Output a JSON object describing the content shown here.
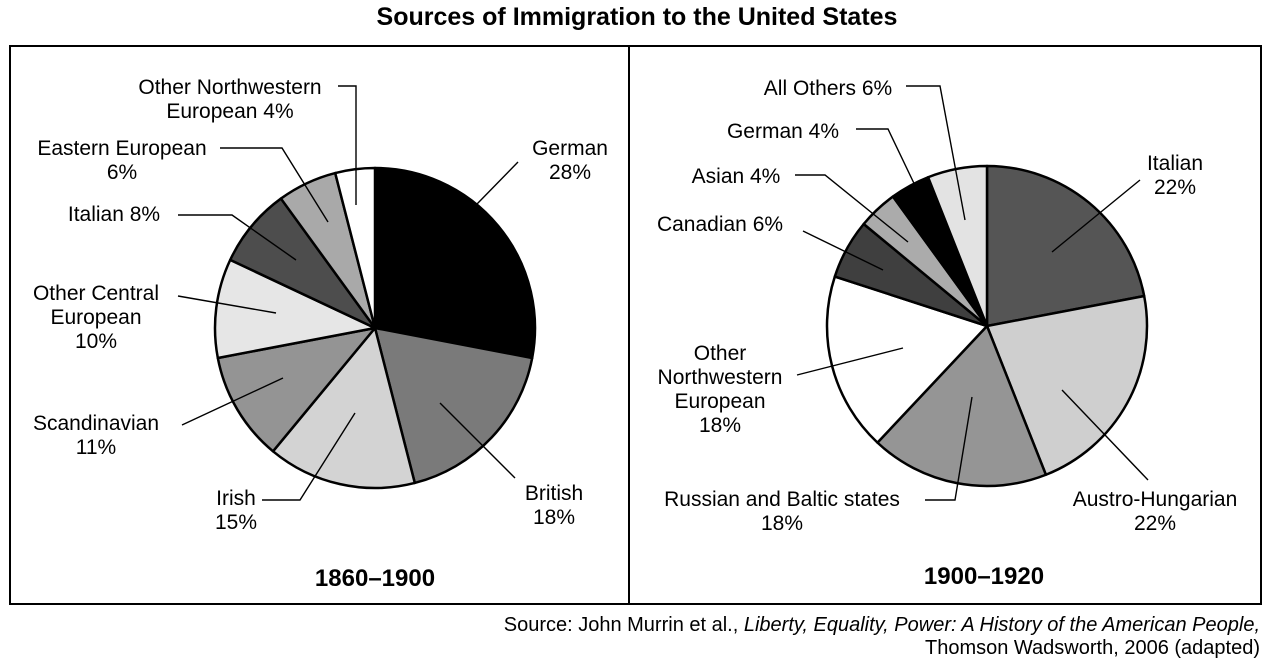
{
  "title": "Sources of Immigration to the United States",
  "source": {
    "prefix": "Source: John Murrin et al., ",
    "book": "Liberty, Equality, Power: A History of the American People,",
    "line2": "Thomson Wadsworth, 2006 (adapted)"
  },
  "chart_data": [
    {
      "type": "pie",
      "title": "1860–1900",
      "slices": [
        {
          "label": "German",
          "value": 28,
          "color": "#000000",
          "text": [
            "German",
            "28%"
          ]
        },
        {
          "label": "British",
          "value": 18,
          "color": "#7a7a7a",
          "text": [
            "British",
            "18%"
          ]
        },
        {
          "label": "Irish",
          "value": 15,
          "color": "#d3d3d3",
          "text": [
            "Irish",
            "15%"
          ]
        },
        {
          "label": "Scandinavian",
          "value": 11,
          "color": "#949494",
          "text": [
            "Scandinavian",
            "11%"
          ]
        },
        {
          "label": "Other Central European",
          "value": 10,
          "color": "#e6e6e6",
          "text": [
            "Other Central",
            "European",
            "10%"
          ]
        },
        {
          "label": "Italian",
          "value": 8,
          "color": "#4d4d4d",
          "text": [
            "Italian 8%"
          ]
        },
        {
          "label": "Eastern European",
          "value": 6,
          "color": "#a9a9a9",
          "text": [
            "Eastern European",
            "6%"
          ]
        },
        {
          "label": "Other Northwestern European",
          "value": 4,
          "color": "#ffffff",
          "text": [
            "Other Northwestern",
            "European 4%"
          ]
        }
      ]
    },
    {
      "type": "pie",
      "title": "1900–1920",
      "slices": [
        {
          "label": "Italian",
          "value": 22,
          "color": "#555555",
          "text": [
            "Italian",
            "22%"
          ]
        },
        {
          "label": "Austro-Hungarian",
          "value": 22,
          "color": "#cfcfcf",
          "text": [
            "Austro-Hungarian",
            "22%"
          ]
        },
        {
          "label": "Russian and Baltic states",
          "value": 18,
          "color": "#959595",
          "text": [
            "Russian and Baltic states",
            "18%"
          ]
        },
        {
          "label": "Other Northwestern European",
          "value": 18,
          "color": "#ffffff",
          "text": [
            "Other",
            "Northwestern",
            "European",
            "18%"
          ]
        },
        {
          "label": "Canadian",
          "value": 6,
          "color": "#3f3f3f",
          "text": [
            "Canadian 6%"
          ]
        },
        {
          "label": "Asian",
          "value": 4,
          "color": "#ababab",
          "text": [
            "Asian 4%"
          ]
        },
        {
          "label": "German",
          "value": 4,
          "color": "#000000",
          "text": [
            "German 4%"
          ]
        },
        {
          "label": "All Others",
          "value": 6,
          "color": "#e3e3e3",
          "text": [
            "All Others 6%"
          ]
        }
      ]
    }
  ]
}
